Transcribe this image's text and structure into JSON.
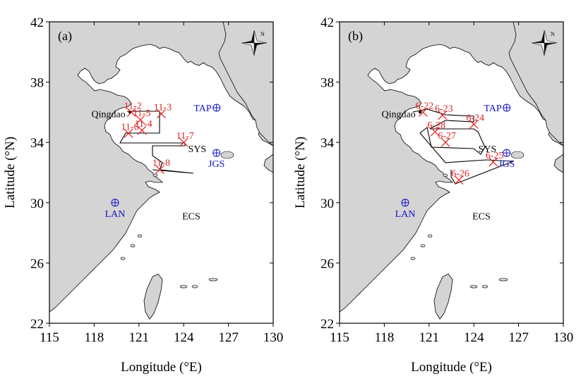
{
  "axes": {
    "x_title": "Longitude (°E)",
    "y_title": "Latitude (°N)",
    "x_ticks": [
      "115",
      "118",
      "121",
      "124",
      "127",
      "130"
    ],
    "y_ticks": [
      "42",
      "38",
      "34",
      "30",
      "26",
      "22"
    ],
    "x_values": [
      115,
      118,
      121,
      124,
      127,
      130
    ],
    "y_values": [
      42,
      38,
      34,
      30,
      26,
      22
    ],
    "xlim": [
      115,
      130
    ],
    "ylim": [
      22,
      42
    ]
  },
  "compass": {
    "label": "N"
  },
  "colors": {
    "land": "#d4d4d4",
    "station": "#e02020",
    "site": "#1010c8"
  },
  "panels": [
    {
      "label": "(a)",
      "places": {
        "qingdao": "Qingdao",
        "sys": "SYS",
        "ecs": "ECS"
      },
      "sites": [
        {
          "id": "tap",
          "name": "TAP",
          "lon": 126.2,
          "lat": 36.3
        },
        {
          "id": "jgs",
          "name": "JGS",
          "lon": 126.2,
          "lat": 33.3
        },
        {
          "id": "lan",
          "name": "LAN",
          "lon": 119.4,
          "lat": 30.0
        }
      ],
      "stations": [
        {
          "name": "11-2",
          "lon": 120.5,
          "lat": 36.0
        },
        {
          "name": "11-3",
          "lon": 122.5,
          "lat": 35.9
        },
        {
          "name": "11-5",
          "lon": 121.1,
          "lat": 35.5
        },
        {
          "name": "11-4",
          "lon": 121.2,
          "lat": 34.8
        },
        {
          "name": "11-6",
          "lon": 120.3,
          "lat": 34.6
        },
        {
          "name": "11-7",
          "lon": 124.0,
          "lat": 34.0
        },
        {
          "name": "11-8",
          "lon": 122.4,
          "lat": 32.2
        }
      ]
    },
    {
      "label": "(b)",
      "places": {
        "qingdao": "Qingdao",
        "sys": "SYS",
        "ecs": "ECS"
      },
      "sites": [
        {
          "id": "tap",
          "name": "TAP",
          "lon": 126.2,
          "lat": 36.3
        },
        {
          "id": "jgs",
          "name": "JGS",
          "lon": 126.2,
          "lat": 33.3
        },
        {
          "id": "lan",
          "name": "LAN",
          "lon": 119.4,
          "lat": 30.0
        }
      ],
      "stations": [
        {
          "name": "6-22",
          "lon": 120.6,
          "lat": 36.0
        },
        {
          "name": "6-23",
          "lon": 121.9,
          "lat": 35.8
        },
        {
          "name": "6-24",
          "lon": 124.0,
          "lat": 35.2
        },
        {
          "name": "6-28",
          "lon": 121.4,
          "lat": 34.7
        },
        {
          "name": "6-27",
          "lon": 122.1,
          "lat": 34.0
        },
        {
          "name": "6-25",
          "lon": 125.3,
          "lat": 32.7
        },
        {
          "name": "6-26",
          "lon": 123.0,
          "lat": 31.5
        }
      ]
    }
  ]
}
